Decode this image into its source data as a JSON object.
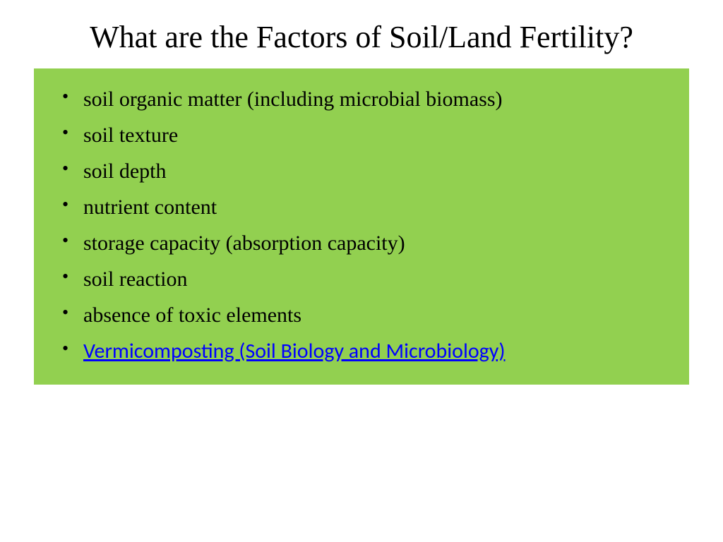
{
  "slide": {
    "title": "What are the Factors of Soil/Land Fertility?",
    "content_box": {
      "background_color": "#92d050",
      "body_font_family": "Times New Roman",
      "body_font_size": 30,
      "body_text_color": "#000000",
      "link_color": "#0000ff",
      "link_font_family": "Calibri",
      "items": [
        {
          "text": "soil organic matter (including microbial biomass)",
          "is_link": false
        },
        {
          "text": "soil texture",
          "is_link": false
        },
        {
          "text": "soil depth",
          "is_link": false
        },
        {
          "text": "nutrient content",
          "is_link": false
        },
        {
          "text": "storage capacity (absorption capacity)",
          "is_link": false
        },
        {
          "text": "soil reaction",
          "is_link": false
        },
        {
          "text": "absence of toxic elements",
          "is_link": false
        },
        {
          "text": "Vermicomposting (Soil Biology and Microbiology)",
          "is_link": true
        }
      ]
    },
    "title_font_size": 44,
    "title_color": "#000000",
    "page_background": "#ffffff"
  }
}
